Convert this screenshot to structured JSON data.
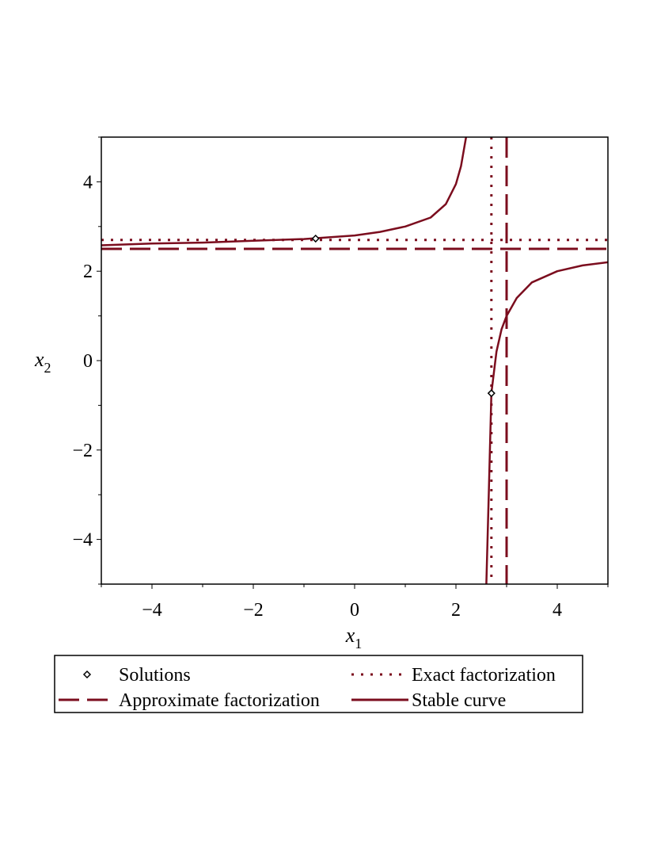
{
  "chart_data": {
    "type": "line",
    "title": "",
    "xlabel": "x",
    "xlabel_sub": "1",
    "ylabel": "x",
    "ylabel_sub": "2",
    "xlim": [
      -5,
      5
    ],
    "ylim": [
      -5,
      5
    ],
    "x_ticks": [
      -4,
      -2,
      0,
      2,
      4
    ],
    "y_ticks": [
      -4,
      -2,
      0,
      2,
      4
    ],
    "x_tick_labels": [
      "−4",
      "−2",
      "0",
      "2",
      "4"
    ],
    "y_tick_labels": [
      "−4",
      "−2",
      "0",
      "2",
      "4"
    ],
    "grid": false,
    "legend_position": "bottom",
    "colors": {
      "series": "#7b0d1e",
      "marker": "#000000",
      "axis": "#000000"
    },
    "series": [
      {
        "name": "Solutions",
        "style": "markers",
        "marker": "diamond",
        "points": [
          [
            -0.77,
            2.73
          ],
          [
            2.7,
            -0.73
          ]
        ]
      },
      {
        "name": "Exact factorization",
        "style": "dotted",
        "horizontal_y": 2.7,
        "vertical_x": 2.7
      },
      {
        "name": "Approximate factorization",
        "style": "dashed",
        "horizontal_y": 2.5,
        "vertical_x": 3.0
      },
      {
        "name": "Stable curve",
        "style": "solid",
        "branches": [
          [
            [
              -5,
              2.58
            ],
            [
              -4,
              2.62
            ],
            [
              -3,
              2.64
            ],
            [
              -2,
              2.68
            ],
            [
              -1,
              2.72
            ],
            [
              0,
              2.8
            ],
            [
              0.5,
              2.88
            ],
            [
              1,
              3.0
            ],
            [
              1.5,
              3.2
            ],
            [
              1.8,
              3.5
            ],
            [
              2.0,
              3.95
            ],
            [
              2.1,
              4.35
            ],
            [
              2.2,
              5.0
            ]
          ],
          [
            [
              2.6,
              -5.0
            ],
            [
              2.65,
              -2.9
            ],
            [
              2.7,
              -0.72
            ],
            [
              2.8,
              0.2
            ],
            [
              2.9,
              0.7
            ],
            [
              3.0,
              1.0
            ],
            [
              3.2,
              1.4
            ],
            [
              3.5,
              1.75
            ],
            [
              4.0,
              2.0
            ],
            [
              4.5,
              2.13
            ],
            [
              5.0,
              2.2
            ]
          ]
        ]
      }
    ],
    "legend": {
      "entries": [
        {
          "label": "Solutions",
          "style": "markers"
        },
        {
          "label": "Exact factorization",
          "style": "dotted"
        },
        {
          "label": "Approximate factorization",
          "style": "dashed"
        },
        {
          "label": "Stable curve",
          "style": "solid"
        }
      ]
    }
  }
}
